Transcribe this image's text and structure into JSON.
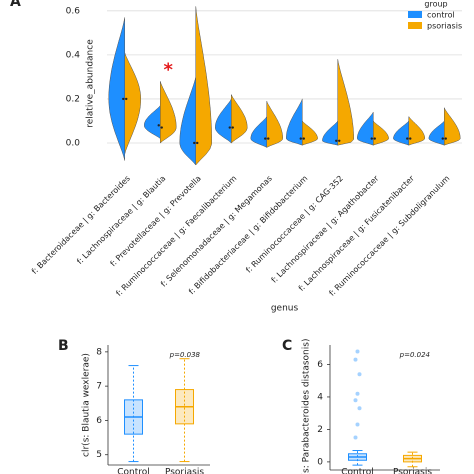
{
  "chart_data": [
    {
      "type": "violin",
      "panel": "A",
      "ylabel": "relative_abundance",
      "xlabel": "genus",
      "legend_title": "group",
      "legend": "upper right",
      "categories": [
        "f: Bacteroidaceae | g: Bacteroides",
        "f: Lachnospiraceae | g: Blautia",
        "f: Prevotellaceae | g: Prevotella",
        "f: Ruminococcaceae | g: Faecalibacterium",
        "f: Selenomonadaceae | g: Megamonas",
        "f: Bifidobacteriaceae | g: Bifidobacterium",
        "f: Ruminococcaceae | g: CAG-352",
        "f: Lachnospiraceae | g: Agathobacter",
        "f: Lachnospiraceae | g: Fusicatenibacter",
        "f: Ruminococcaceae | g: Subdoligranulum"
      ],
      "series": [
        {
          "name": "control",
          "color": "#1e8fff",
          "min": [
            -0.08,
            0.02,
            -0.1,
            0.0,
            -0.02,
            -0.01,
            -0.01,
            -0.01,
            -0.01,
            -0.01
          ],
          "median": [
            0.2,
            0.08,
            0.0,
            0.07,
            0.02,
            0.02,
            0.01,
            0.02,
            0.02,
            0.02
          ],
          "max": [
            0.57,
            0.17,
            0.3,
            0.2,
            0.12,
            0.2,
            0.1,
            0.14,
            0.1,
            0.1
          ]
        },
        {
          "name": "psoriasis",
          "color": "#f5a800",
          "min": [
            -0.05,
            0.0,
            -0.1,
            0.0,
            -0.02,
            -0.01,
            -0.01,
            -0.01,
            -0.01,
            -0.01
          ],
          "median": [
            0.2,
            0.07,
            0.0,
            0.07,
            0.02,
            0.02,
            0.01,
            0.02,
            0.02,
            0.02
          ],
          "max": [
            0.41,
            0.28,
            0.62,
            0.22,
            0.19,
            0.1,
            0.38,
            0.1,
            0.12,
            0.16
          ]
        }
      ],
      "annotations": [
        {
          "text": "*",
          "category": "f: Lachnospiraceae | g: Blautia",
          "y": 0.33,
          "color": "#e41a1c"
        }
      ],
      "ylim": [
        -0.1,
        0.64
      ],
      "yticks": [
        {
          "value": 0,
          "label": "0.0"
        },
        0.2,
        0.4,
        0.6
      ],
      "grid": true
    },
    {
      "type": "box",
      "panel": "B",
      "ylabel": "clr(s: Blautia wexlerae)",
      "annotation": "p=0.038",
      "categories": [
        "Control",
        "Psoriasis"
      ],
      "colors": [
        "#1e8fff",
        "#f5a800"
      ],
      "min": [
        4.8,
        4.8
      ],
      "q1": [
        5.6,
        5.9
      ],
      "median": [
        6.1,
        6.4
      ],
      "q3": [
        6.6,
        6.9
      ],
      "max": [
        7.6,
        7.8
      ],
      "ylim": [
        4.7,
        8.2
      ],
      "yticks": [
        5,
        6,
        7,
        8
      ]
    },
    {
      "type": "box",
      "panel": "C",
      "ylabel": "(s: Parabacteroides distasonis)",
      "annotation": "p=0.024",
      "categories": [
        "Control",
        "Psoriasis"
      ],
      "colors": [
        "#1e8fff",
        "#f5a800"
      ],
      "min": [
        -0.2,
        -0.3
      ],
      "q1": [
        0.1,
        0.0
      ],
      "median": [
        0.3,
        0.2
      ],
      "q3": [
        0.5,
        0.4
      ],
      "max": [
        0.7,
        0.6
      ],
      "outliers": [
        [
          1.5,
          2.3,
          3.3,
          3.8,
          4.2,
          5.4,
          6.3,
          6.8
        ],
        []
      ],
      "ylim": [
        -0.5,
        7.2
      ],
      "yticks": [
        0,
        2,
        4,
        6
      ]
    }
  ]
}
